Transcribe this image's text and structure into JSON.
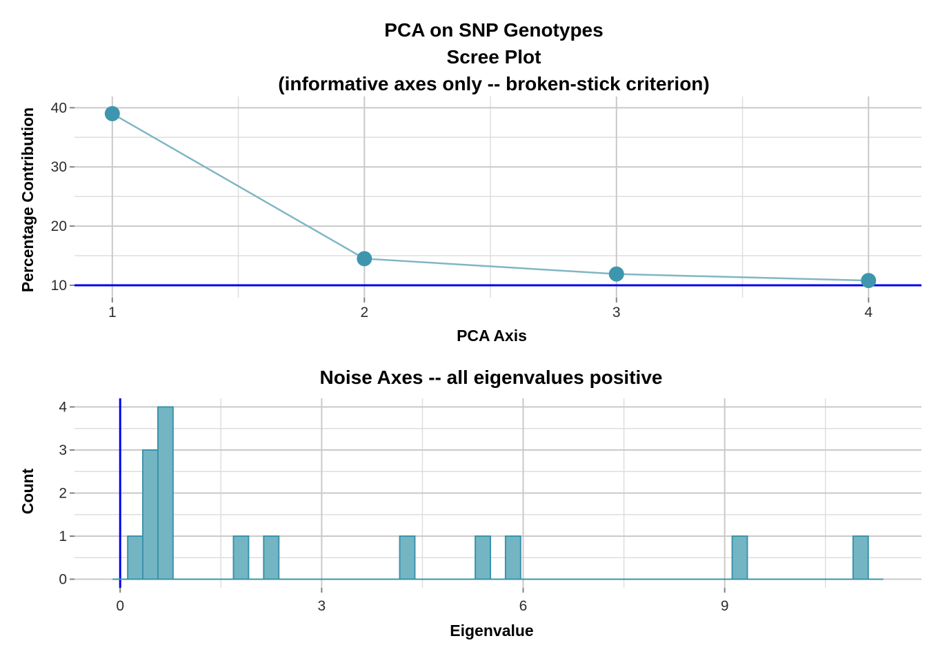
{
  "figure": {
    "background": "#FFFFFF",
    "grid_major_color": "#C9C9C9",
    "grid_minor_color": "#DEDEDE",
    "tick_mark_color": "#808080",
    "tick_label_color": "#2B2B2B"
  },
  "chart_data": [
    {
      "type": "line",
      "title": "PCA on SNP Genotypes",
      "subtitle": "Scree Plot",
      "subtitle2": "(informative axes only -- broken-stick criterion)",
      "xlabel": "PCA Axis",
      "ylabel": "Percentage Contribution",
      "x": [
        1,
        2,
        3,
        4
      ],
      "y": [
        39.0,
        14.5,
        11.9,
        10.8
      ],
      "x_ticks": [
        "1",
        "2",
        "3",
        "4"
      ],
      "x_tick_values": [
        1,
        2,
        3,
        4
      ],
      "y_ticks": [
        "10",
        "20",
        "30",
        "40"
      ],
      "y_tick_values": [
        10,
        20,
        30,
        40
      ],
      "x_minor": [
        1.5,
        2.5,
        3.5
      ],
      "y_minor": [
        15,
        25,
        35
      ],
      "xlim": [
        0.85,
        4.21
      ],
      "ylim": [
        7.9,
        41.9
      ],
      "grid": "major+minor",
      "legend": "none",
      "reference_line": {
        "axis": "y",
        "value": 10,
        "color": "#0000EE",
        "meaning": "broken-stick threshold"
      },
      "colors": {
        "point": "#3D96AE",
        "line": "#7FB6C4"
      }
    },
    {
      "type": "bar",
      "subtype": "histogram",
      "title": "Noise Axes -- all eigenvalues positive",
      "xlabel": "Eigenvalue",
      "ylabel": "Count",
      "binwidth": 0.225,
      "bins": [
        {
          "start": 0.112,
          "count": 1
        },
        {
          "start": 0.337,
          "count": 3
        },
        {
          "start": 0.562,
          "count": 4
        },
        {
          "start": 1.687,
          "count": 1
        },
        {
          "start": 2.137,
          "count": 1
        },
        {
          "start": 4.162,
          "count": 1
        },
        {
          "start": 5.287,
          "count": 1
        },
        {
          "start": 5.737,
          "count": 1
        },
        {
          "start": 9.112,
          "count": 1
        },
        {
          "start": 10.912,
          "count": 1
        }
      ],
      "baseline_range": [
        -0.113,
        11.362
      ],
      "x_ticks": [
        "0",
        "3",
        "6",
        "9"
      ],
      "x_tick_values": [
        0,
        3,
        6,
        9
      ],
      "y_ticks": [
        "0",
        "1",
        "2",
        "3",
        "4"
      ],
      "y_tick_values": [
        0,
        1,
        2,
        3,
        4
      ],
      "x_minor": [
        1.5,
        4.5,
        7.5,
        10.5
      ],
      "y_minor": [
        0.5,
        1.5,
        2.5,
        3.5
      ],
      "xlim": [
        -0.68,
        11.93
      ],
      "ylim": [
        -0.2,
        4.2
      ],
      "grid": "major+minor",
      "legend": "none",
      "reference_line": {
        "axis": "x",
        "value": 0,
        "color": "#0000EE",
        "meaning": "zero eigenvalue"
      },
      "colors": {
        "bar_fill": "#74B5C4",
        "bar_stroke": "#3A93AB"
      }
    }
  ]
}
